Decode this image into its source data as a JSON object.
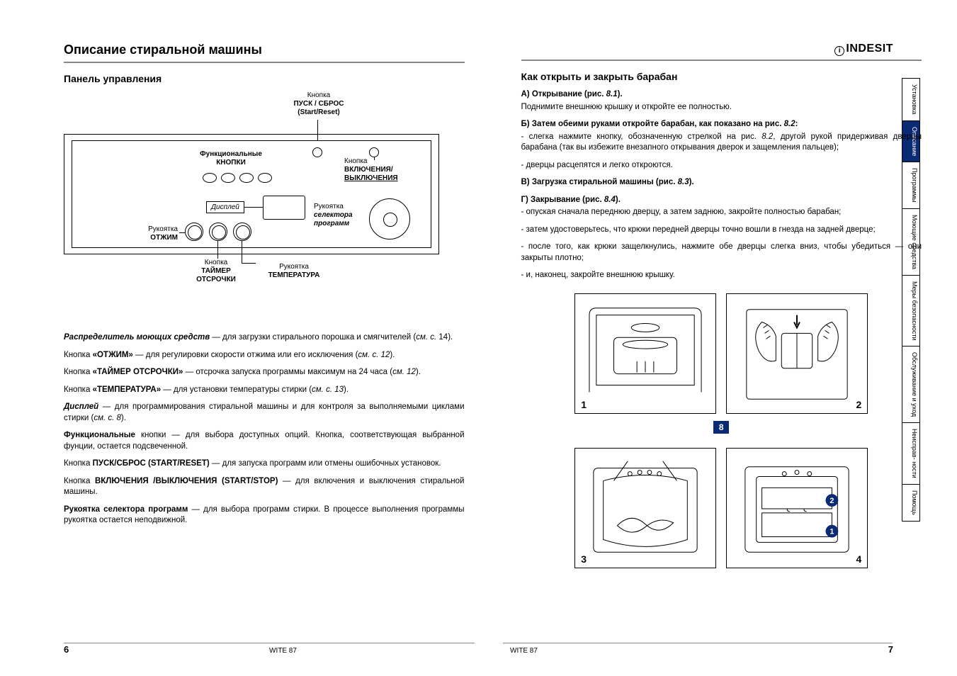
{
  "brand": "INDESIT",
  "left": {
    "title": "Описание стиральной машины",
    "section": "Панель управления",
    "diagram": {
      "start_reset_label": "Кнопка",
      "start_reset_bold": "ПУСК / СБРОС",
      "start_reset_sub": "(Start/Reset)",
      "func_label": "Функциональные",
      "func_bold": "КНОПКИ",
      "onoff_label": "Кнопка",
      "onoff_bold": "ВКЛЮЧЕНИЯ/",
      "onoff_bold2": "ВЫКЛЮЧЕНИЯ",
      "display_box": "Дисплей",
      "selector_label": "Рукоятка",
      "selector_it1": "селектора",
      "selector_it2": "программ",
      "spin_label": "Рукоятка",
      "spin_bold": "ОТЖИМ",
      "delay_label": "Кнопка",
      "delay_bold": "ТАЙМЕР",
      "delay_bold2": "ОТСРОЧКИ",
      "temp_label": "Рукоятка",
      "temp_bold": "ТЕМПЕРАТУРА"
    },
    "paras": [
      {
        "html": "<b><i>Распределитель моющих средств</i></b> — для загрузки стирального порошка и смягчителей (<i>см. с.</i> 14)."
      },
      {
        "html": "Кнопка <b>«ОТЖИМ»</b> — для регулировки скорости отжима или его исключения (<i>см. с. 12</i>)."
      },
      {
        "html": "Кнопка <b>«ТАЙМЕР ОТСРОЧКИ»</b> — отсрочка запуска программы максимум на 24 часа (<i>см. 12</i>)."
      },
      {
        "html": "Кнопка <b>«ТЕМПЕРАТУРА»</b> — для установки температуры стирки (<i>см. с. 13</i>)."
      },
      {
        "html": "<b><i>Дисплей</i></b> — для программирования стиральной машины и для контроля за выполняемыми циклами стирки (<i>см. с. 8</i>)."
      },
      {
        "html": "<b>Функциональные</b> кнопки — для выбора доступных опций. Кнопка, соответствующая выбранной фунции, остается подсвеченной."
      },
      {
        "html": "Кнопка <b>ПУСК/СБРОС (START/RESET)</b> — для запуска программ или отмены ошибочных установок."
      },
      {
        "html": "Кнопка <b>ВКЛЮЧЕНИЯ /ВЫКЛЮЧЕНИЯ (START/STOP)</b> — для включения и выключения стиральной машины."
      },
      {
        "html": "<b>Рукоятка селектора программ</b> — для выбора программ стирки. В процессе выполнения программы рукоятка остается неподвижной."
      }
    ],
    "page_num": "6",
    "model": "WITE 87"
  },
  "right": {
    "section": "Как открыть и закрыть барабан",
    "blocks": [
      {
        "html": "<b>А) Открывание (рис. <i>8.1</i>).</b>"
      },
      {
        "html": "Поднимите внешнюю крышку и откройте ее полностью."
      },
      {
        "html": "<b>Б) Затем обеими руками откройте барабан, как показано на рис. <i>8.2</i>:</b>"
      },
      {
        "html": "- слегка нажмите кнопку, обозначенную стрелкой на рис. <i>8.2</i>, другой рукой придерживая дверцы барабана (так вы избежите внезапного открывания дверок и защемления пальцев);"
      },
      {
        "html": "- дверцы расцепятся и легко откроются."
      },
      {
        "html": "<b>В) Загрузка стиральной машины (рис. <i>8.3</i>).</b>"
      },
      {
        "html": "<b>Г) Закрывание (рис. <i>8.4</i>).</b>"
      },
      {
        "html": "- опуская сначала переднюю  дверцу, а затем заднюю, закройте полностью барабан;"
      },
      {
        "html": "- затем удостоверьтесь, что  крюки передней дверцы точно вошли в гнезда на задней дверце;"
      },
      {
        "html": "-  после того, как крюки защелкнулись, нажмите обе дверцы слегка вниз, чтобы убедиться — они закрыты плотно;"
      },
      {
        "html": "- и, наконец,  закройте внешнюю крышку."
      }
    ],
    "badge": "8",
    "fig_nums": [
      "1",
      "2",
      "3",
      "4"
    ],
    "page_num": "7",
    "model": "WITE 87"
  },
  "tabs": [
    "Установка",
    "Описание",
    "Программы",
    "Моющие средства",
    "Меры безопасности",
    "Обслуживание и уход",
    "Неисправ- ности",
    "Помощь"
  ],
  "active_tab_index": 1,
  "colors": {
    "accent": "#0a2a73",
    "rule": "#888888"
  }
}
